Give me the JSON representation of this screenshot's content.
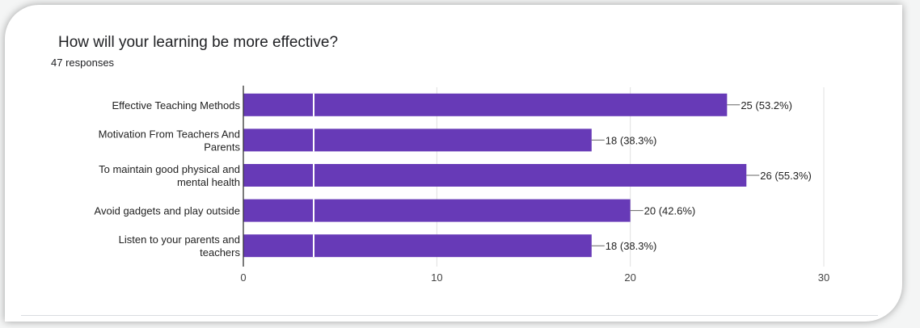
{
  "question": {
    "title": "How will your learning be more effective?",
    "responses": "47 responses"
  },
  "chart_data": {
    "type": "bar",
    "orientation": "horizontal",
    "title": "How will your learning be more effective?",
    "subtitle": "47 responses",
    "categories": [
      [
        "Effective Teaching Methods"
      ],
      [
        "Motivation From Teachers And",
        "Parents"
      ],
      [
        "To maintain good physical and",
        "mental health"
      ],
      [
        "Avoid gadgets and play outside"
      ],
      [
        "Listen to your parents and",
        "teachers"
      ]
    ],
    "values": [
      25,
      18,
      26,
      20,
      18
    ],
    "labels": [
      "25 (53.2%)",
      "18 (38.3%)",
      "26 (55.3%)",
      "20 (42.6%)",
      "18 (38.3%)"
    ],
    "xlim": [
      0,
      30
    ],
    "xticks": [
      0,
      10,
      20,
      30
    ],
    "grid": true,
    "bar_color": "#673ab7",
    "grid_color": "#e0e0e0",
    "axis_color": "#333333"
  }
}
